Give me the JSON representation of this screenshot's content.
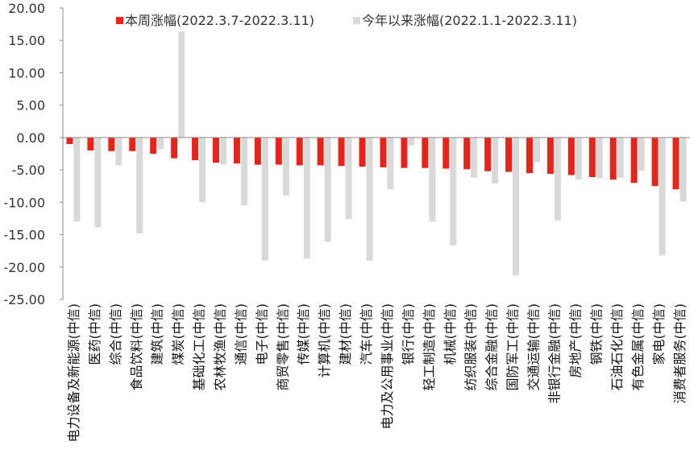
{
  "chart_data": {
    "type": "bar",
    "ylim": [
      -25,
      20
    ],
    "yticks": [
      20,
      15,
      10,
      5,
      0,
      -5,
      -10,
      -15,
      -20,
      -25
    ],
    "ytick_labels": [
      "20.00",
      "15.00",
      "10.00",
      "5.00",
      "0.00",
      "-5.00",
      "-10.00",
      "-15.00",
      "-20.00",
      "-25.00"
    ],
    "legend_position": "top",
    "grid": false,
    "categories": [
      "电力设备及新能源(中信)",
      "医药(中信)",
      "综合(中信)",
      "食品饮料(中信)",
      "建筑(中信)",
      "煤炭(中信)",
      "基础化工(中信)",
      "农林牧渔(中信)",
      "通信(中信)",
      "电子(中信)",
      "商贸零售(中信)",
      "传媒(中信)",
      "计算机(中信)",
      "建材(中信)",
      "汽车(中信)",
      "电力及公用事业(中信)",
      "银行(中信)",
      "轻工制造(中信)",
      "机械(中信)",
      "纺织服装(中信)",
      "综合金融(中信)",
      "国防军工(中信)",
      "交通运输(中信)",
      "非银行金融(中信)",
      "房地产(中信)",
      "钢铁(中信)",
      "石油石化(中信)",
      "有色金属(中信)",
      "家电(中信)",
      "消费者服务(中信)"
    ],
    "series": [
      {
        "name": "本周涨幅(2022.3.7-2022.3.11)",
        "color": "#e8231a",
        "values": [
          -1.0,
          -2.0,
          -2.1,
          -2.1,
          -2.5,
          -3.2,
          -3.5,
          -3.9,
          -4.0,
          -4.2,
          -4.2,
          -4.3,
          -4.3,
          -4.4,
          -4.5,
          -4.6,
          -4.7,
          -4.7,
          -4.8,
          -4.9,
          -5.2,
          -5.3,
          -5.5,
          -5.6,
          -5.8,
          -6.1,
          -6.5,
          -7.0,
          -7.5,
          -8.0
        ]
      },
      {
        "name": "今年以来涨幅(2022.1.1-2022.3.11)",
        "color": "#d9d9d9",
        "values": [
          -13.0,
          -13.9,
          -4.3,
          -14.8,
          -1.8,
          16.4,
          -10.0,
          -4.2,
          -10.5,
          -19.0,
          -9.0,
          -18.7,
          -16.1,
          -12.6,
          -19.0,
          -8.0,
          -1.2,
          -13.0,
          -16.7,
          -6.2,
          -7.1,
          -21.3,
          -3.8,
          -12.8,
          -6.5,
          -6.3,
          -6.2,
          -5.1,
          -18.2,
          -9.9
        ]
      }
    ]
  }
}
